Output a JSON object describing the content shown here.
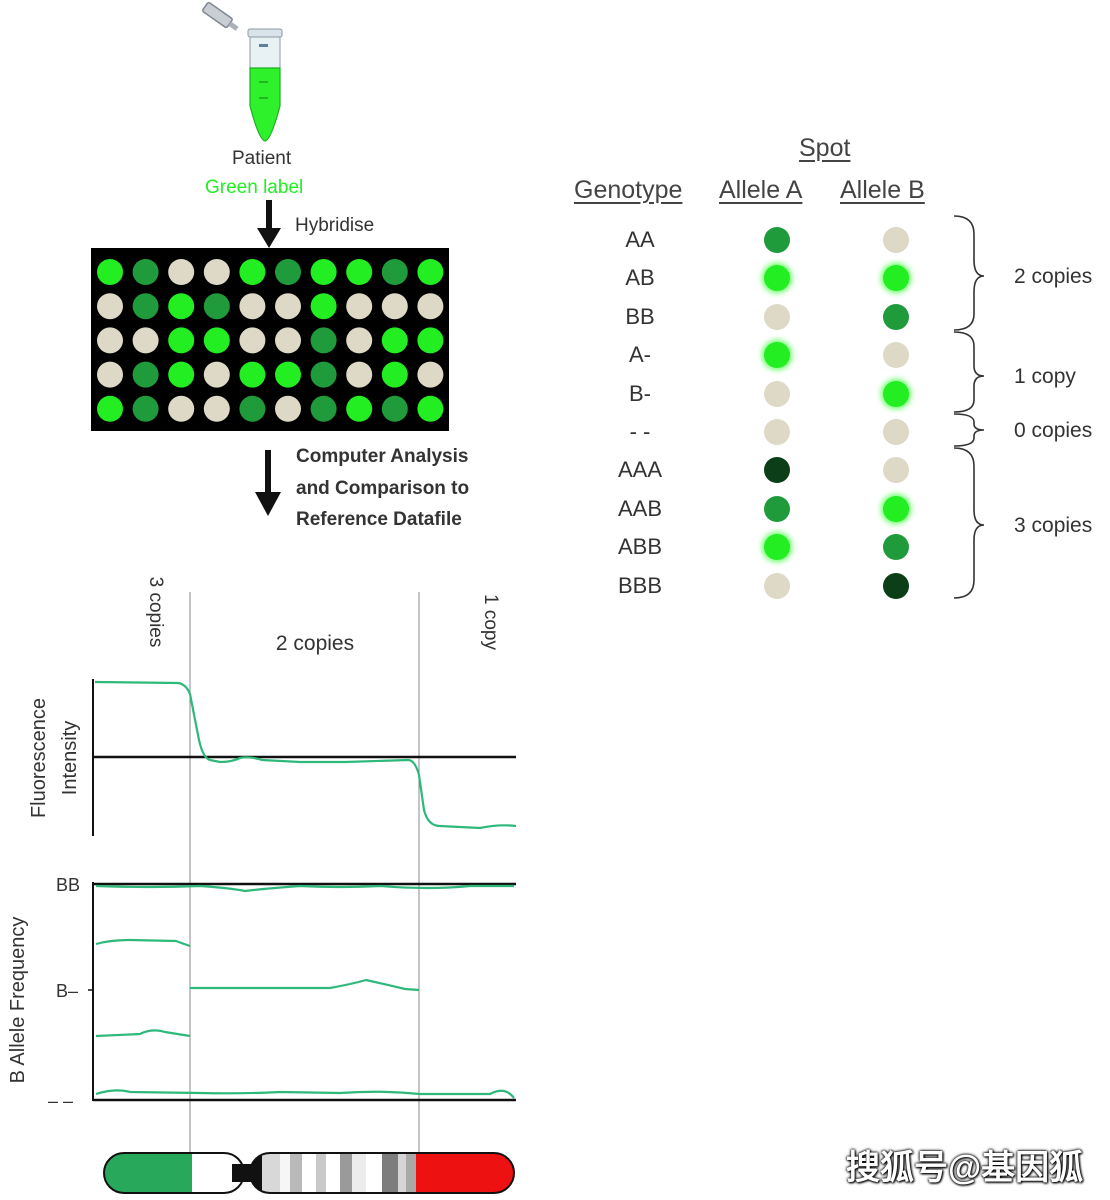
{
  "flow": {
    "patient": "Patient",
    "label": "Green label",
    "hybridise": "Hybridise",
    "analysis_lines": [
      "Computer Analysis",
      "and Comparison to",
      "Reference Datafile"
    ]
  },
  "colors": {
    "bright": "#22ee22",
    "medium": "#1f9b3c",
    "dark": "#0c3f18",
    "blank": "#ddd9c6",
    "trace": "#2eb87a",
    "chrom_green": "#27a85a",
    "chrom_red": "#ee1111"
  },
  "array": {
    "rows": [
      [
        "bright",
        "medium",
        "blank",
        "blank",
        "bright",
        "medium",
        "bright",
        "bright",
        "medium",
        "bright"
      ],
      [
        "blank",
        "medium",
        "bright",
        "medium",
        "blank",
        "blank",
        "bright",
        "blank",
        "blank",
        "blank"
      ],
      [
        "blank",
        "blank",
        "bright",
        "bright",
        "blank",
        "blank",
        "medium",
        "blank",
        "bright",
        "bright"
      ],
      [
        "blank",
        "medium",
        "bright",
        "blank",
        "bright",
        "bright",
        "medium",
        "blank",
        "bright",
        "blank"
      ],
      [
        "bright",
        "medium",
        "blank",
        "blank",
        "medium",
        "blank",
        "medium",
        "bright",
        "medium",
        "bright"
      ]
    ]
  },
  "table": {
    "spot_header": "Spot",
    "genotype_header": "Genotype",
    "allele_a_header": "Allele A",
    "allele_b_header": "Allele B",
    "rows": [
      {
        "genotype": "AA",
        "a": "medium",
        "b": "blank"
      },
      {
        "genotype": "AB",
        "a": "bright",
        "b": "bright"
      },
      {
        "genotype": "BB",
        "a": "blank",
        "b": "medium"
      },
      {
        "genotype": "A-",
        "a": "bright",
        "b": "blank"
      },
      {
        "genotype": "B-",
        "a": "blank",
        "b": "bright"
      },
      {
        "genotype": "- -",
        "a": "blank",
        "b": "blank"
      },
      {
        "genotype": "AAA",
        "a": "dark",
        "b": "blank"
      },
      {
        "genotype": "AAB",
        "a": "medium",
        "b": "bright"
      },
      {
        "genotype": "ABB",
        "a": "bright",
        "b": "medium"
      },
      {
        "genotype": "BBB",
        "a": "blank",
        "b": "dark"
      }
    ],
    "groups": [
      "2 copies",
      "1 copy",
      "0 copies",
      "3 copies"
    ]
  },
  "plot": {
    "segments": [
      "3 copies",
      "2 copies",
      "1 copy"
    ],
    "fluorescence_label": "Fluorescence Intensity",
    "fluorescence_label_lines": [
      "Fluorescence",
      "Intensity"
    ],
    "baf_label": "B Allele Frequency",
    "baf_ticks": [
      "BB",
      "B–",
      "– –"
    ]
  },
  "watermark": "搜狐号@基因狐"
}
